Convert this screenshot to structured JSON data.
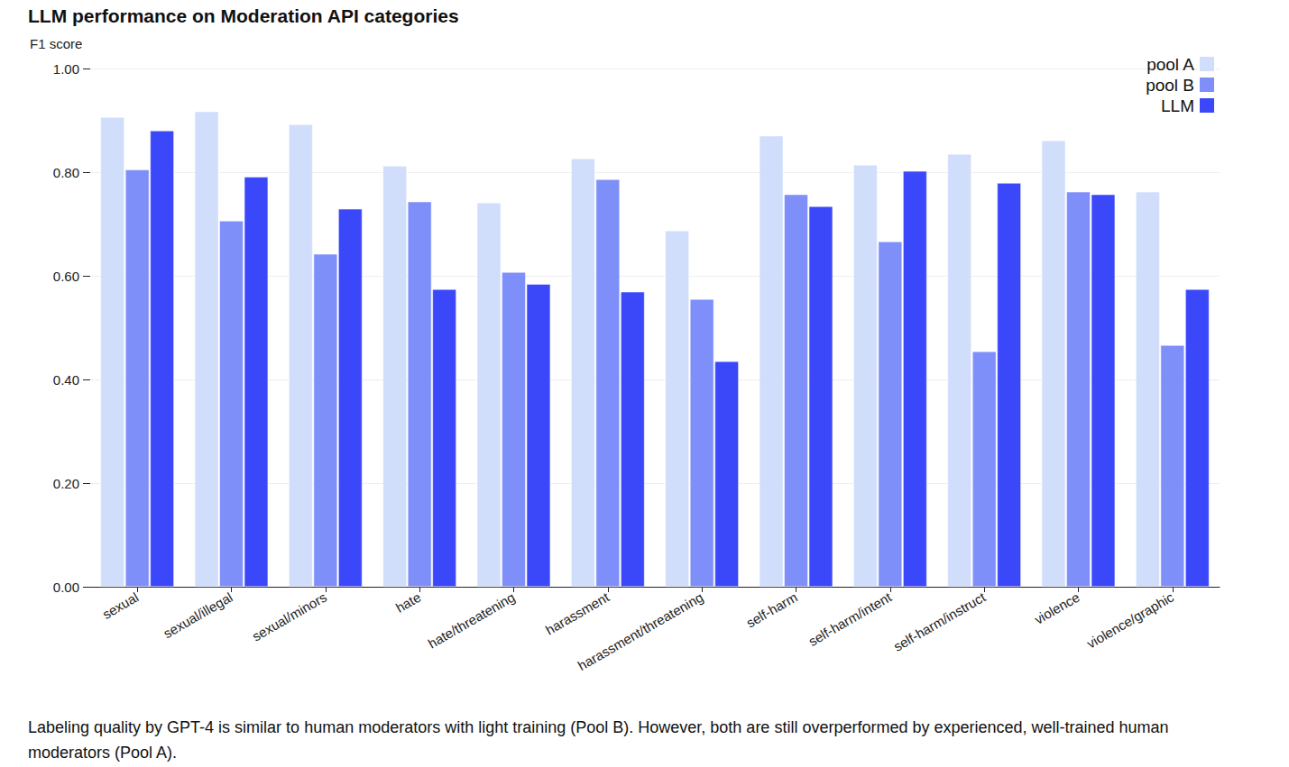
{
  "chart_data": {
    "type": "bar",
    "title": "LLM performance on Moderation API categories",
    "y_label": "F1 score",
    "caption": "Labeling quality by GPT-4 is similar to human moderators with light training (Pool B). However, both are still overperformed by experienced, well-trained human moderators (Pool A).",
    "categories": [
      "sexual",
      "sexual/illegal",
      "sexual/minors",
      "hate",
      "hate/threatening",
      "harassment",
      "harassment/threatening",
      "self-harm",
      "self-harm/intent",
      "self-harm/instruct",
      "violence",
      "violence/graphic"
    ],
    "series": [
      {
        "name": "pool A",
        "color": "#d0ddfb",
        "values": [
          0.906,
          0.917,
          0.892,
          0.812,
          0.741,
          0.826,
          0.687,
          0.87,
          0.814,
          0.835,
          0.861,
          0.762
        ]
      },
      {
        "name": "pool B",
        "color": "#7f8ffa",
        "values": [
          0.805,
          0.706,
          0.642,
          0.743,
          0.607,
          0.786,
          0.555,
          0.757,
          0.666,
          0.454,
          0.762,
          0.466
        ]
      },
      {
        "name": "LLM",
        "color": "#3b48fa",
        "values": [
          0.88,
          0.791,
          0.729,
          0.574,
          0.584,
          0.569,
          0.435,
          0.734,
          0.802,
          0.779,
          0.757,
          0.574
        ]
      }
    ],
    "ylim": [
      0,
      1
    ],
    "yticks": [
      {
        "value": 0,
        "label": "0.00"
      },
      {
        "value": 0.2,
        "label": "0.20"
      },
      {
        "value": 0.4,
        "label": "0.40"
      },
      {
        "value": 0.6,
        "label": "0.60"
      },
      {
        "value": 0.8,
        "label": "0.80"
      },
      {
        "value": 1,
        "label": "1.00"
      }
    ],
    "grid": true,
    "legend": "top-right"
  }
}
